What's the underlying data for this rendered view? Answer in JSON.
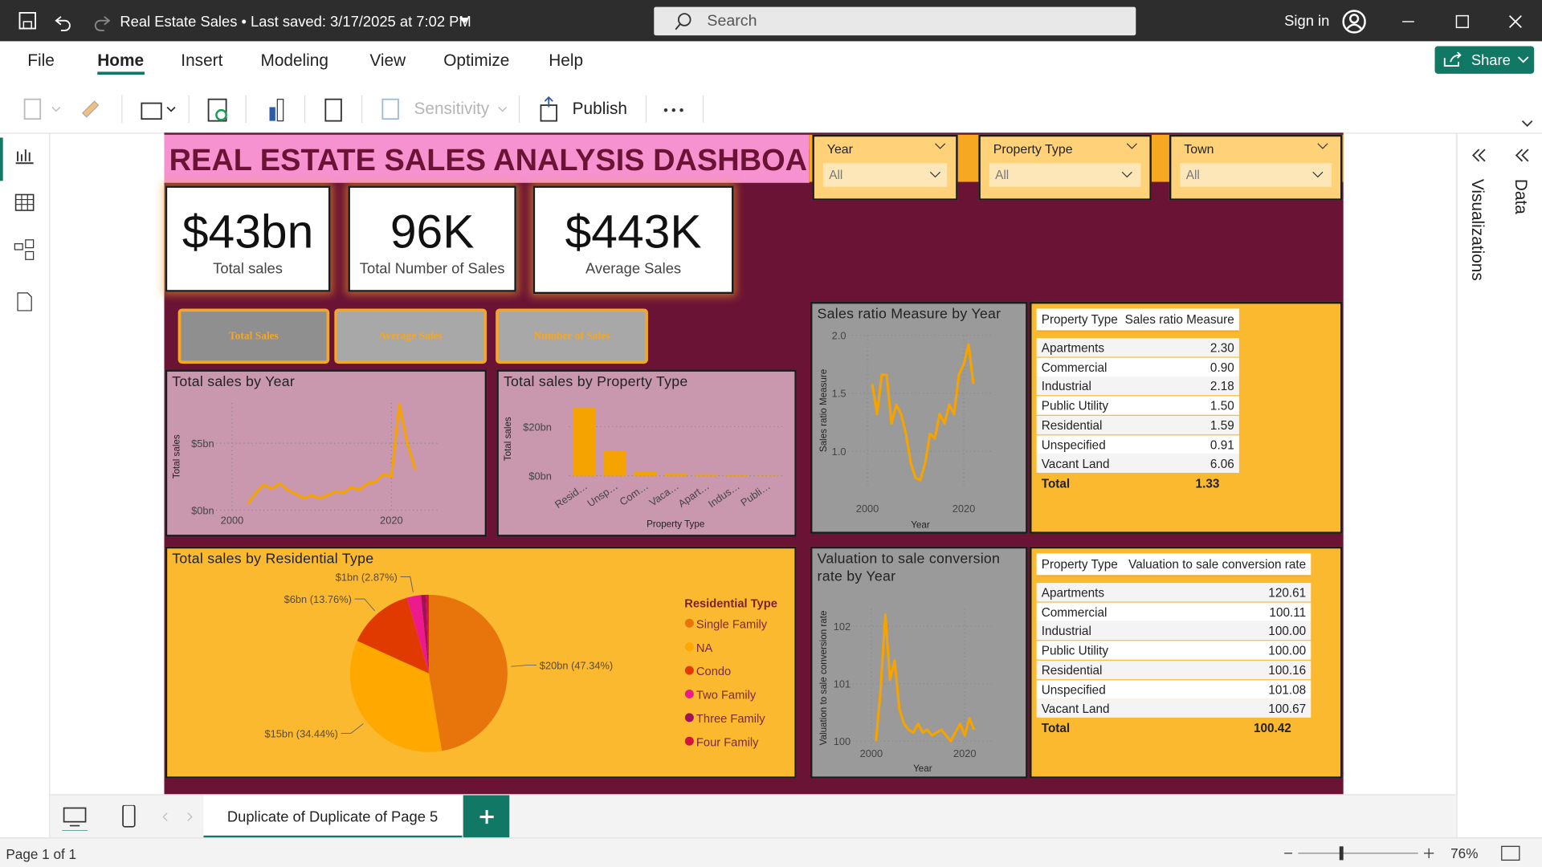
{
  "titlebar": {
    "title": "Real Estate Sales • Last saved: 3/17/2025 at 7:02 PM",
    "search": "Search",
    "sign_in": "Sign in"
  },
  "menu": [
    "File",
    "Home",
    "Insert",
    "Modeling",
    "View",
    "Optimize",
    "Help"
  ],
  "share": "Share",
  "toolbar": {
    "sensitivity": "Sensitivity",
    "publish": "Publish"
  },
  "side_panels": [
    "Visualizations",
    "Data"
  ],
  "dashboard": {
    "title": "REAL ESTATE SALES ANALYSIS DASHBOARD",
    "slicers": [
      {
        "label": "Year",
        "value": "All"
      },
      {
        "label": "Property Type",
        "value": "All"
      },
      {
        "label": "Town",
        "value": "All"
      }
    ],
    "kpis": [
      {
        "value": "$43bn",
        "label": "Total sales"
      },
      {
        "value": "96K",
        "label": "Total Number of Sales"
      },
      {
        "value": "$443K",
        "label": "Average Sales"
      }
    ],
    "buttons": [
      "Total Sales",
      "Average Sales",
      "Number of Sales"
    ],
    "tables": [
      {
        "columns": [
          "Property Type",
          "Sales ratio Measure"
        ],
        "rows": [
          [
            "Apartments",
            "2.30"
          ],
          [
            "Commercial",
            "0.90"
          ],
          [
            "Industrial",
            "2.18"
          ],
          [
            "Public Utility",
            "1.50"
          ],
          [
            "Residential",
            "1.59"
          ],
          [
            "Unspecified",
            "0.91"
          ],
          [
            "Vacant Land",
            "6.06"
          ]
        ],
        "total": [
          "Total",
          "1.33"
        ]
      },
      {
        "columns": [
          "Property Type",
          "Valuation to sale conversion rate"
        ],
        "rows": [
          [
            "Apartments",
            "120.61"
          ],
          [
            "Commercial",
            "100.11"
          ],
          [
            "Industrial",
            "100.00"
          ],
          [
            "Public Utility",
            "100.00"
          ],
          [
            "Residential",
            "100.16"
          ],
          [
            "Unspecified",
            "101.08"
          ],
          [
            "Vacant Land",
            "100.67"
          ]
        ],
        "total": [
          "Total",
          "100.42"
        ]
      }
    ]
  },
  "chart_data": [
    {
      "type": "line",
      "title": "Total sales by Year",
      "y_label": "Total sales",
      "color": "#F5A300",
      "grid": true,
      "x": [
        2002,
        2003,
        2004,
        2005,
        2006,
        2007,
        2008,
        2009,
        2010,
        2011,
        2012,
        2013,
        2014,
        2015,
        2016,
        2017,
        2018,
        2019,
        2020,
        2021,
        2022,
        2023
      ],
      "values": [
        0.5,
        1.3,
        1.9,
        1.6,
        2.0,
        1.5,
        1.2,
        0.9,
        1.1,
        0.9,
        1.1,
        1.4,
        1.3,
        1.7,
        1.5,
        2.0,
        2.1,
        2.7,
        2.5,
        7.9,
        5.0,
        3.0
      ],
      "xlim": [
        1998,
        2026
      ],
      "xticks": [
        2000,
        2020
      ],
      "ylim": [
        0,
        8
      ],
      "yticks": [
        {
          "value": 0,
          "label": "$0bn"
        },
        {
          "value": 5,
          "label": "$5bn"
        }
      ]
    },
    {
      "type": "bar",
      "title": "Total sales by Property Type",
      "x_label": "Property Type",
      "y_label": "Total sales",
      "color": "#F5A300",
      "grid": true,
      "categories": [
        "Resid…",
        "Unsp…",
        "Com…",
        "Vaca…",
        "Apart…",
        "Indus…",
        "Publi…"
      ],
      "values": [
        27.6,
        10,
        1.6,
        0.8,
        0.6,
        0.3,
        0.1
      ],
      "ylim": [
        0,
        30
      ],
      "yticks": [
        {
          "value": 0,
          "label": "$0bn"
        },
        {
          "value": 20,
          "label": "$20bn"
        }
      ]
    },
    {
      "type": "line",
      "title": "Sales ratio Measure by Year",
      "x_label": "Year",
      "y_label": "Sales ratio Measure",
      "color": "#F5A300",
      "grid": true,
      "x": [
        2001,
        2002,
        2003,
        2004,
        2005,
        2006,
        2007,
        2008,
        2009,
        2010,
        2011,
        2012,
        2013,
        2014,
        2015,
        2016,
        2017,
        2018,
        2019,
        2020,
        2021,
        2022
      ],
      "values": [
        1.58,
        1.32,
        1.66,
        1.66,
        1.24,
        1.4,
        1.32,
        1.15,
        0.9,
        0.77,
        0.75,
        0.9,
        1.15,
        1.11,
        1.32,
        1.24,
        1.4,
        1.32,
        1.66,
        1.75,
        1.92,
        1.58
      ],
      "xlim": [
        1996,
        2026
      ],
      "xticks": [
        2000,
        2020
      ],
      "ylim": [
        0.7,
        2.0
      ],
      "yticks": [
        {
          "value": 1.0,
          "label": "1.0"
        },
        {
          "value": 1.5,
          "label": "1.5"
        },
        {
          "value": 2.0,
          "label": "2.0"
        }
      ]
    },
    {
      "type": "line",
      "title": "Valuation to sale conversion rate by Year",
      "x_label": "Year",
      "y_label": "Valuation to sale conversion rate",
      "color": "#F5A300",
      "grid": true,
      "x": [
        2001,
        2002,
        2003,
        2004,
        2005,
        2006,
        2007,
        2008,
        2009,
        2010,
        2011,
        2012,
        2013,
        2014,
        2015,
        2016,
        2017,
        2018,
        2019,
        2020,
        2021,
        2022
      ],
      "values": [
        100.0,
        100.9,
        102.2,
        101.07,
        101.4,
        100.56,
        100.3,
        100.2,
        100.15,
        100.3,
        100.15,
        100.2,
        100.1,
        100.15,
        100.2,
        100.1,
        100.0,
        100.15,
        100.3,
        100.1,
        100.4,
        100.2
      ],
      "xlim": [
        1996,
        2026
      ],
      "xticks": [
        2000,
        2020
      ],
      "ylim": [
        99.9,
        102.3
      ],
      "yticks": [
        100,
        101,
        102
      ]
    },
    {
      "type": "pie",
      "title": "Total sales by Residential Type",
      "legend_title": "Residential Type",
      "categories": [
        "Single Family",
        "NA",
        "Condo",
        "Two Family",
        "Three Family",
        "Four Family"
      ],
      "values": [
        47.34,
        34.44,
        13.76,
        2.87,
        1.0,
        0.59
      ],
      "value_labels": [
        "$20bn (47.34%)",
        "$15bn (34.44%)",
        "$6bn (13.76%)",
        "$1bn (2.87%)",
        null,
        null
      ],
      "colors": [
        "#E8740C",
        "#FFA800",
        "#E03A00",
        "#EC1A8C",
        "#A3105A",
        "#D0143C"
      ]
    }
  ],
  "page_tabs": {
    "tab": "Duplicate of Duplicate of Page 5"
  },
  "status": {
    "page": "Page 1 of 1",
    "zoom": "76%"
  }
}
